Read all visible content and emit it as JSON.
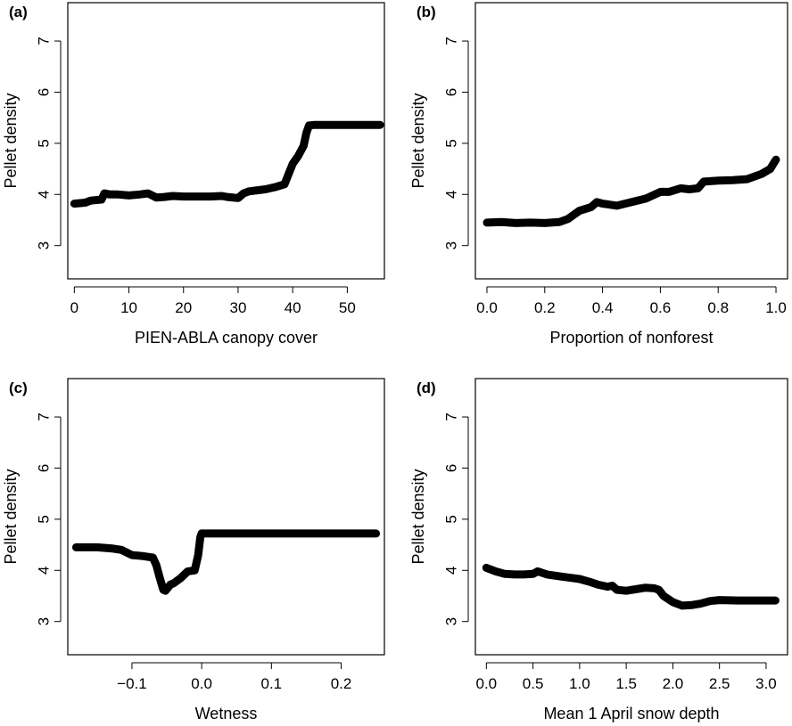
{
  "chart_data": [
    {
      "panel": "(a)",
      "type": "line",
      "xlabel": "PIEN-ABLA canopy cover",
      "ylabel": "Pellet density",
      "xlim": [
        0,
        56
      ],
      "ylim": [
        3,
        7
      ],
      "xticks": [
        0,
        10,
        20,
        30,
        40,
        50
      ],
      "xtick_labels": [
        "0",
        "10",
        "20",
        "30",
        "40",
        "50"
      ],
      "yticks": [
        3,
        4,
        5,
        6,
        7
      ],
      "ytick_labels": [
        "3",
        "4",
        "5",
        "6",
        "7"
      ],
      "grid": false,
      "series": [
        {
          "x": [
            0,
            2,
            3,
            5,
            5.5,
            6.5,
            8,
            10,
            12,
            13.5,
            15,
            16.5,
            18,
            20,
            22,
            25,
            27,
            28,
            30,
            31,
            32,
            35,
            37,
            38.5,
            40,
            41,
            42,
            42.5,
            43,
            44,
            47,
            50,
            53,
            56
          ],
          "y": [
            3.82,
            3.84,
            3.88,
            3.9,
            4.02,
            4.0,
            4.0,
            3.98,
            4.0,
            4.02,
            3.94,
            3.95,
            3.97,
            3.96,
            3.96,
            3.96,
            3.97,
            3.95,
            3.93,
            4.02,
            4.06,
            4.1,
            4.15,
            4.2,
            4.6,
            4.75,
            4.95,
            5.2,
            5.35,
            5.36,
            5.36,
            5.36,
            5.36,
            5.36
          ]
        }
      ]
    },
    {
      "panel": "(b)",
      "type": "line",
      "xlabel": "Proportion of nonforest",
      "ylabel": "Pellet density",
      "xlim": [
        0,
        1
      ],
      "ylim": [
        3,
        7
      ],
      "xticks": [
        0,
        0.2,
        0.4,
        0.6,
        0.8,
        1.0
      ],
      "xtick_labels": [
        "0.0",
        "0.2",
        "0.4",
        "0.6",
        "0.8",
        "1.0"
      ],
      "yticks": [
        3,
        4,
        5,
        6,
        7
      ],
      "ytick_labels": [
        "3",
        "4",
        "5",
        "6",
        "7"
      ],
      "grid": false,
      "series": [
        {
          "x": [
            0,
            0.05,
            0.1,
            0.15,
            0.2,
            0.25,
            0.28,
            0.32,
            0.36,
            0.38,
            0.4,
            0.45,
            0.5,
            0.55,
            0.6,
            0.63,
            0.67,
            0.7,
            0.73,
            0.75,
            0.8,
            0.85,
            0.9,
            0.95,
            0.98,
            1.0
          ],
          "y": [
            3.45,
            3.46,
            3.44,
            3.45,
            3.44,
            3.46,
            3.52,
            3.68,
            3.75,
            3.85,
            3.82,
            3.78,
            3.85,
            3.92,
            4.05,
            4.05,
            4.12,
            4.1,
            4.12,
            4.25,
            4.27,
            4.28,
            4.3,
            4.4,
            4.5,
            4.68
          ]
        }
      ]
    },
    {
      "panel": "(c)",
      "type": "line",
      "xlabel": "Wetness",
      "ylabel": "Pellet density",
      "xlim": [
        -0.18,
        0.25
      ],
      "ylim": [
        3,
        7
      ],
      "xticks": [
        -0.1,
        0.0,
        0.1,
        0.2
      ],
      "xtick_labels": [
        "−0.1",
        "0.0",
        "0.1",
        "0.2"
      ],
      "yticks": [
        3,
        4,
        5,
        6,
        7
      ],
      "ytick_labels": [
        "3",
        "4",
        "5",
        "6",
        "7"
      ],
      "grid": false,
      "series": [
        {
          "x": [
            -0.18,
            -0.15,
            -0.13,
            -0.115,
            -0.1,
            -0.085,
            -0.07,
            -0.065,
            -0.06,
            -0.055,
            -0.052,
            -0.045,
            -0.04,
            -0.03,
            -0.02,
            -0.01,
            -0.005,
            -0.002,
            0.0,
            0.05,
            0.1,
            0.15,
            0.2,
            0.25
          ],
          "y": [
            4.45,
            4.45,
            4.43,
            4.4,
            4.3,
            4.28,
            4.25,
            4.1,
            3.85,
            3.62,
            3.6,
            3.72,
            3.75,
            3.85,
            3.98,
            4.0,
            4.3,
            4.65,
            4.72,
            4.72,
            4.72,
            4.72,
            4.72,
            4.72
          ]
        }
      ]
    },
    {
      "panel": "(d)",
      "type": "line",
      "xlabel": "Mean 1 April snow depth",
      "ylabel": "Pellet density",
      "xlim": [
        0,
        3.1
      ],
      "ylim": [
        3,
        7
      ],
      "xticks": [
        0,
        0.5,
        1.0,
        1.5,
        2.0,
        2.5,
        3.0
      ],
      "xtick_labels": [
        "0.0",
        "0.5",
        "1.0",
        "1.5",
        "2.0",
        "2.5",
        "3.0"
      ],
      "yticks": [
        3,
        4,
        5,
        6,
        7
      ],
      "ytick_labels": [
        "3",
        "4",
        "5",
        "6",
        "7"
      ],
      "grid": false,
      "series": [
        {
          "x": [
            0,
            0.1,
            0.2,
            0.3,
            0.4,
            0.5,
            0.55,
            0.65,
            0.8,
            1.0,
            1.1,
            1.2,
            1.3,
            1.35,
            1.4,
            1.5,
            1.6,
            1.7,
            1.8,
            1.85,
            1.9,
            2.0,
            2.1,
            2.2,
            2.3,
            2.4,
            2.5,
            2.7,
            3.0,
            3.1
          ],
          "y": [
            4.05,
            3.98,
            3.93,
            3.92,
            3.92,
            3.93,
            3.98,
            3.92,
            3.88,
            3.83,
            3.78,
            3.72,
            3.68,
            3.7,
            3.62,
            3.6,
            3.63,
            3.66,
            3.65,
            3.62,
            3.5,
            3.38,
            3.31,
            3.32,
            3.35,
            3.4,
            3.42,
            3.41,
            3.41,
            3.41
          ]
        }
      ]
    }
  ]
}
